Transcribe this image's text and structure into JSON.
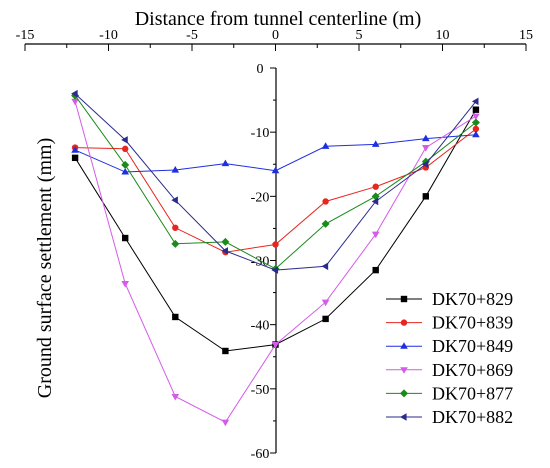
{
  "chart_data": {
    "type": "line",
    "xlabel": "Distance from tunnel centerline (m)",
    "ylabel": "Ground surface settlement (mm)",
    "xlim": [
      -15,
      15
    ],
    "ylim": [
      -60,
      0
    ],
    "x_ticks": [
      "-15",
      "-10",
      "-5",
      "0",
      "5",
      "10",
      "15"
    ],
    "y_ticks": [
      "0",
      "-10",
      "-20",
      "-30",
      "-40",
      "-50",
      "-60"
    ],
    "grid": false,
    "legend_position": "bottom-right",
    "series": [
      {
        "name": "DK70+829",
        "color": "#000000",
        "marker": "square",
        "x": [
          -12,
          -9,
          -6,
          -3,
          0,
          3,
          6,
          9,
          12
        ],
        "y": [
          -14.0,
          -26.5,
          -38.8,
          -44.1,
          -43.1,
          -39.1,
          -31.5,
          -20.0,
          -6.5
        ]
      },
      {
        "name": "DK70+839",
        "color": "#e8251f",
        "marker": "circle",
        "x": [
          -12,
          -9,
          -6,
          -3,
          0,
          3,
          6,
          9,
          12
        ],
        "y": [
          -12.4,
          -12.6,
          -24.9,
          -28.7,
          -27.5,
          -20.8,
          -18.5,
          -15.5,
          -9.5
        ]
      },
      {
        "name": "DK70+849",
        "color": "#1f2fe0",
        "marker": "triangle-up",
        "x": [
          -12,
          -9,
          -6,
          -3,
          0,
          3,
          6,
          9,
          12
        ],
        "y": [
          -12.8,
          -16.2,
          -15.9,
          -14.9,
          -16.0,
          -12.2,
          -11.9,
          -11.0,
          -10.4
        ]
      },
      {
        "name": "DK70+869",
        "color": "#d45ce8",
        "marker": "triangle-down",
        "x": [
          -12,
          -9,
          -6,
          -3,
          0,
          3,
          6,
          9,
          12
        ],
        "y": [
          -5.2,
          -33.6,
          -51.2,
          -55.2,
          -43.1,
          -36.5,
          -25.9,
          -12.4,
          -7.5
        ]
      },
      {
        "name": "DK70+877",
        "color": "#1a8a1a",
        "marker": "diamond",
        "x": [
          -12,
          -9,
          -6,
          -3,
          0,
          3,
          6,
          9,
          12
        ],
        "y": [
          -4.3,
          -15.1,
          -27.4,
          -27.1,
          -31.3,
          -24.3,
          -20.0,
          -14.6,
          -8.5
        ]
      },
      {
        "name": "DK70+882",
        "color": "#2a2a8f",
        "marker": "triangle-left",
        "x": [
          -12,
          -9,
          -6,
          -3,
          0,
          3,
          6,
          9,
          12
        ],
        "y": [
          -4.0,
          -11.2,
          -20.6,
          -28.5,
          -31.5,
          -30.9,
          -20.8,
          -15.0,
          -5.2
        ]
      }
    ]
  }
}
